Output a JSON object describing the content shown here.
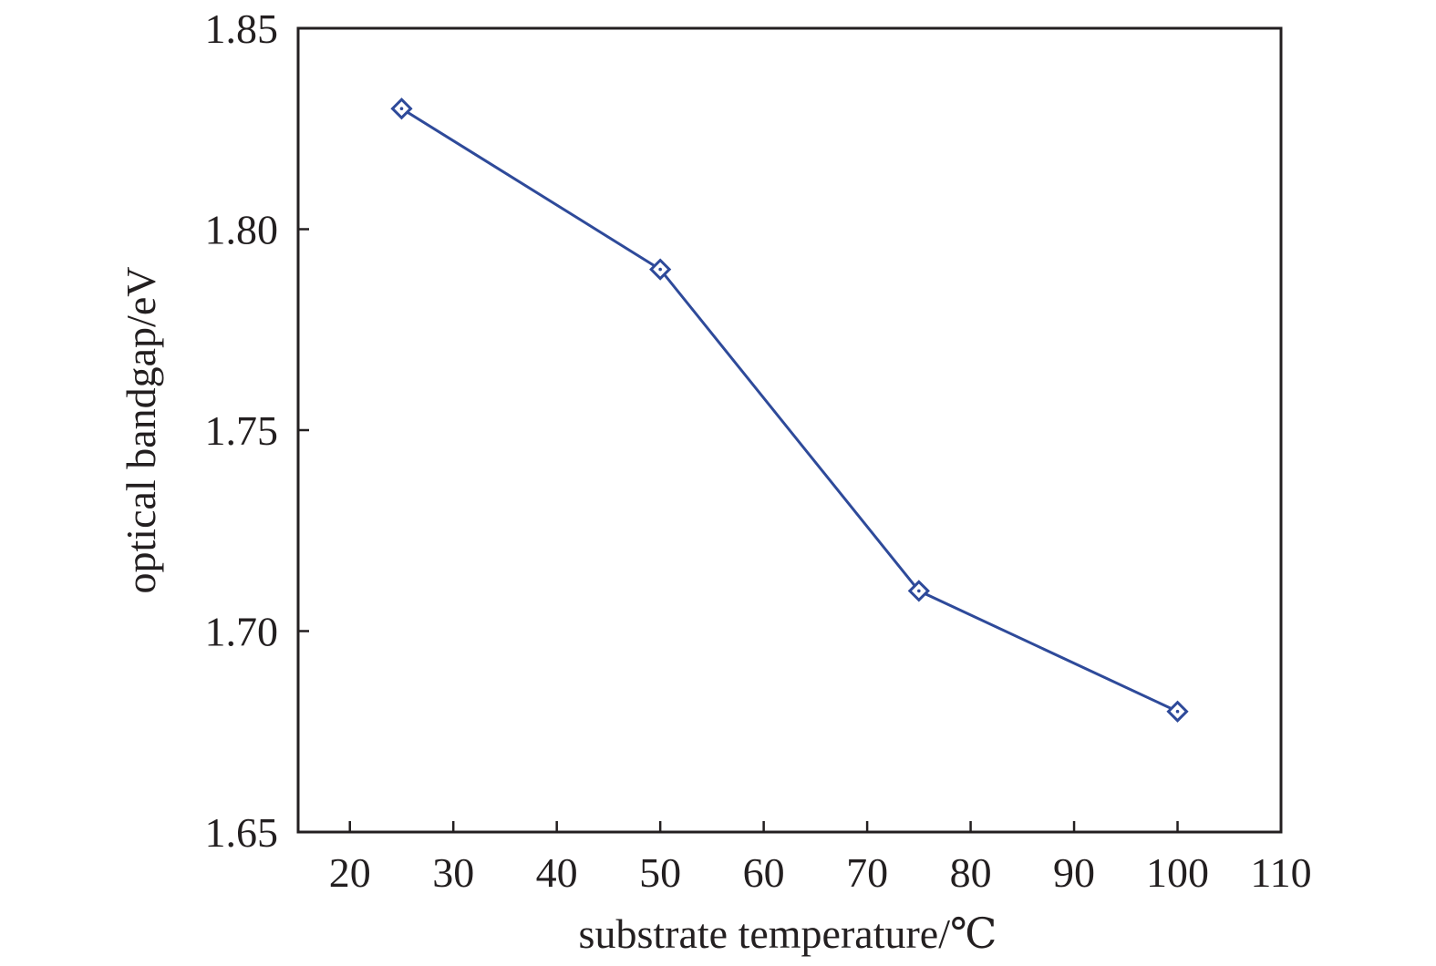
{
  "chart_data": {
    "type": "line",
    "title": "",
    "xlabel": "substrate temperature/℃",
    "ylabel": "optical bandgap/eV",
    "xlim": [
      15,
      110
    ],
    "ylim": [
      1.65,
      1.85
    ],
    "xticks": [
      20,
      30,
      40,
      50,
      60,
      70,
      80,
      90,
      100,
      110
    ],
    "yticks": [
      1.65,
      1.7,
      1.75,
      1.8,
      1.85
    ],
    "ytick_labels": [
      "1.65",
      "1.70",
      "1.75",
      "1.80",
      "1.85"
    ],
    "grid": false,
    "series": [
      {
        "x": [
          25,
          50,
          75,
          100
        ],
        "y": [
          1.83,
          1.79,
          1.71,
          1.68
        ],
        "color": "#2e4a9a",
        "marker": "diamond-open"
      }
    ]
  },
  "colors": {
    "axis": "#231f20",
    "series": "#2e4a9a"
  }
}
